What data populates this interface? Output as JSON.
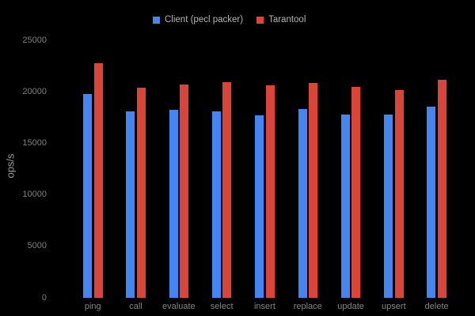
{
  "window": {
    "background": "#000000"
  },
  "chart_data": {
    "type": "bar",
    "title": "",
    "xlabel": "",
    "ylabel": "ops/s",
    "categories": [
      "ping",
      "call",
      "evaluate",
      "select",
      "insert",
      "replace",
      "update",
      "upsert",
      "delete"
    ],
    "series": [
      {
        "name": "Client (pecl packer)",
        "color": "#4285F4",
        "values": [
          19800,
          18120,
          18270,
          18080,
          17740,
          18350,
          17810,
          17780,
          18580
        ]
      },
      {
        "name": "Tarantool",
        "color": "#DB4437",
        "values": [
          22780,
          20410,
          20720,
          20950,
          20640,
          20870,
          20490,
          20180,
          21180
        ]
      }
    ],
    "ylim": [
      0,
      25000
    ],
    "yticks": [
      0,
      5000,
      10000,
      15000,
      20000,
      25000
    ],
    "grid": false,
    "legend_position": "top-center",
    "colors": {
      "background": "#000000",
      "y_tick_labels": "#7f7f7f",
      "x_tick_labels": "#858585",
      "y_axis_title": "#9c9c9c",
      "legend_text": "#b3b3b3"
    }
  }
}
